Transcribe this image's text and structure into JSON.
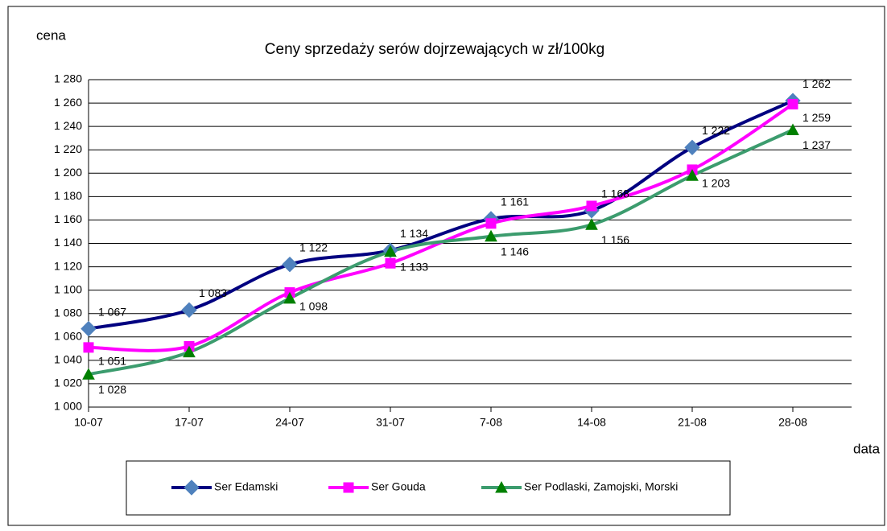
{
  "chart_data": {
    "type": "line",
    "title": "Ceny sprzedaży serów dojrzewających w zł/100kg",
    "y_label": "cena",
    "x_label": "data",
    "categories": [
      "10-07",
      "17-07",
      "24-07",
      "31-07",
      "7-08",
      "14-08",
      "21-08",
      "28-08"
    ],
    "ylim": [
      1000,
      1280
    ],
    "yticks": [
      {
        "value": 1000,
        "label": "1 000"
      },
      {
        "value": 1020,
        "label": "1 020"
      },
      {
        "value": 1040,
        "label": "1 040"
      },
      {
        "value": 1060,
        "label": "1 060"
      },
      {
        "value": 1080,
        "label": "1 080"
      },
      {
        "value": 1100,
        "label": "1 100"
      },
      {
        "value": 1120,
        "label": "1 120"
      },
      {
        "value": 1140,
        "label": "1 140"
      },
      {
        "value": 1160,
        "label": "1 160"
      },
      {
        "value": 1180,
        "label": "1 180"
      },
      {
        "value": 1200,
        "label": "1 200"
      },
      {
        "value": 1220,
        "label": "1 220"
      },
      {
        "value": 1240,
        "label": "1 240"
      },
      {
        "value": 1260,
        "label": "1 260"
      },
      {
        "value": 1280,
        "label": "1 280"
      }
    ],
    "grid": true,
    "legend": "bottom",
    "series": [
      {
        "name": "Ser Edamski",
        "color": "#000080",
        "marker_color": "#4f81bd",
        "marker": "diamond",
        "values": [
          1067,
          1083,
          1122,
          1134,
          1161,
          1168,
          1222,
          1262
        ],
        "value_labels": [
          "1 067",
          "1 083",
          "1 122",
          "1 134",
          "1 161",
          "1 168",
          "1 222",
          "1 262"
        ]
      },
      {
        "name": "Ser Gouda",
        "color": "#ff00ff",
        "marker_color": "#ff00ff",
        "marker": "square",
        "values": [
          1051,
          1052,
          1098,
          1123,
          1157,
          1172,
          1203,
          1259
        ],
        "value_labels": [
          "1 051",
          null,
          "1 098",
          null,
          null,
          null,
          "1 203",
          "1 259"
        ]
      },
      {
        "name": "Ser Podlaski, Zamojski, Morski",
        "color": "#3c9c6e",
        "marker_color": "#008000",
        "marker": "triangle",
        "values": [
          1028,
          1047,
          1093,
          1133,
          1146,
          1156,
          1198,
          1237
        ],
        "value_labels": [
          "1 028",
          null,
          null,
          "1 133",
          "1 146",
          "1 156",
          null,
          "1 237"
        ]
      }
    ]
  }
}
